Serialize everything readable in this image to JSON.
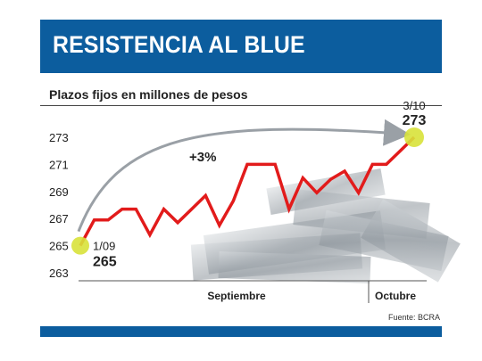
{
  "header": {
    "title": "RESISTENCIA AL BLUE"
  },
  "subtitle": "Plazos fijos en millones de pesos",
  "source": "Fuente: BCRA",
  "colors": {
    "header": "#0c5d9e",
    "line": "#e21b1b",
    "marker": "#d8e23a",
    "arrow": "#9aa0a6"
  },
  "chart_data": {
    "type": "line",
    "title": "Plazos fijos en millones de pesos",
    "yticks": [
      263,
      265,
      267,
      269,
      271,
      273
    ],
    "ylim": [
      263,
      274
    ],
    "months": [
      "Septiembre",
      "Octubre"
    ],
    "values": [
      265,
      266.9,
      266.9,
      267.7,
      267.7,
      265.8,
      267.7,
      266.7,
      267.7,
      268.7,
      266.5,
      268.3,
      271,
      271,
      271,
      267.7,
      270,
      268.9,
      269.9,
      270.5,
      268.9,
      271,
      271,
      272,
      273
    ],
    "annotations": {
      "start_label": "1/09",
      "start_value": "265",
      "end_label": "3/10",
      "end_value": "273",
      "change": "+3%"
    }
  }
}
